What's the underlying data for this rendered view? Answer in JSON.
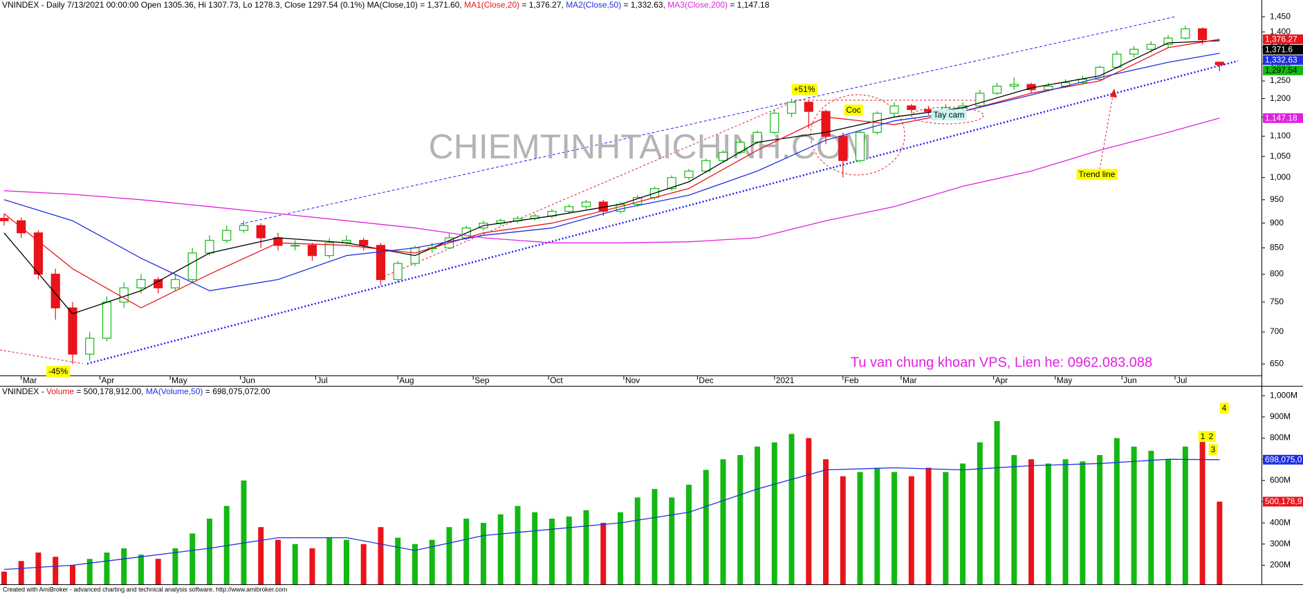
{
  "chart_data": [
    {
      "type": "candlestick",
      "header": [
        {
          "text": "VNINDEX - Daily 7/13/2021 00:00:00 Open 1305.36, Hi 1307.73, Lo 1278.3, Close 1297.54 (0.1%) MA(Close,10) = 1,371.60, ",
          "color": "#000000"
        },
        {
          "text": "MA1(Close,20)",
          "color": "#e8141a"
        },
        {
          "text": " = 1,376.27, ",
          "color": "#000000"
        },
        {
          "text": "MA2(Close,50)",
          "color": "#1f2fe0"
        },
        {
          "text": " = 1,332.63, ",
          "color": "#000000"
        },
        {
          "text": "MA3(Close,200)",
          "color": "#e020e0"
        },
        {
          "text": " = 1,147.18",
          "color": "#000000"
        }
      ],
      "up_color": "#14b814",
      "down_color": "#e8141a",
      "log_scale": true,
      "xlim": [
        -0.24,
        73.45
      ],
      "ylim": [
        633,
        1507
      ],
      "yticks": [
        650,
        700,
        750,
        800,
        850,
        900,
        950,
        {
          "value": 1000,
          "label": "1,000"
        },
        {
          "value": 1050,
          "label": "1,050"
        },
        {
          "value": 1100,
          "label": "1,100"
        },
        {
          "value": 1150,
          "label": "1,150"
        },
        {
          "value": 1200,
          "label": "1,200"
        },
        {
          "value": 1250,
          "label": "1,250"
        },
        {
          "value": 1300,
          "label": "1,300"
        },
        {
          "value": 1350,
          "label": "1,350"
        },
        {
          "value": 1400,
          "label": "1,400"
        },
        {
          "value": 1450,
          "label": "1,450"
        }
      ],
      "xticks": [
        {
          "value": 1,
          "label": "Mar"
        },
        {
          "value": 5.6,
          "label": "Apr"
        },
        {
          "value": 9.7,
          "label": "May"
        },
        {
          "value": 13.8,
          "label": "Jun"
        },
        {
          "value": 18.2,
          "label": "Jul"
        },
        {
          "value": 23,
          "label": "Aug"
        },
        {
          "value": 27.4,
          "label": "Sep"
        },
        {
          "value": 31.8,
          "label": "Oct"
        },
        {
          "value": 36.2,
          "label": "Nov"
        },
        {
          "value": 40.5,
          "label": "Dec"
        },
        {
          "value": 45,
          "label": "2021"
        },
        {
          "value": 49,
          "label": "Feb"
        },
        {
          "value": 52.4,
          "label": "Mar"
        },
        {
          "value": 57.8,
          "label": "Apr"
        },
        {
          "value": 61.4,
          "label": "May"
        },
        {
          "value": 65.3,
          "label": "Jun"
        },
        {
          "value": 68.4,
          "label": "Jul"
        }
      ],
      "ohlc": [
        [
          910,
          920,
          895,
          905
        ],
        [
          905,
          912,
          870,
          880
        ],
        [
          880,
          885,
          790,
          800
        ],
        [
          800,
          810,
          720,
          740
        ],
        [
          740,
          750,
          650,
          665
        ],
        [
          665,
          700,
          655,
          690
        ],
        [
          690,
          760,
          685,
          750
        ],
        [
          750,
          785,
          740,
          775
        ],
        [
          775,
          800,
          765,
          790
        ],
        [
          790,
          795,
          765,
          775
        ],
        [
          775,
          800,
          770,
          790
        ],
        [
          790,
          850,
          785,
          840
        ],
        [
          840,
          875,
          835,
          865
        ],
        [
          865,
          895,
          860,
          885
        ],
        [
          885,
          905,
          880,
          895
        ],
        [
          895,
          900,
          850,
          870
        ],
        [
          870,
          880,
          845,
          855
        ],
        [
          855,
          865,
          845,
          855
        ],
        [
          855,
          860,
          825,
          835
        ],
        [
          835,
          870,
          830,
          860
        ],
        [
          860,
          875,
          855,
          865
        ],
        [
          865,
          870,
          845,
          855
        ],
        [
          855,
          860,
          780,
          790
        ],
        [
          790,
          825,
          785,
          820
        ],
        [
          820,
          855,
          815,
          850
        ],
        [
          850,
          860,
          840,
          850
        ],
        [
          850,
          880,
          848,
          870
        ],
        [
          870,
          895,
          865,
          890
        ],
        [
          890,
          905,
          885,
          900
        ],
        [
          900,
          910,
          895,
          905
        ],
        [
          905,
          915,
          900,
          910
        ],
        [
          910,
          920,
          905,
          915
        ],
        [
          915,
          930,
          910,
          925
        ],
        [
          925,
          940,
          920,
          935
        ],
        [
          935,
          950,
          930,
          945
        ],
        [
          945,
          950,
          915,
          925
        ],
        [
          925,
          945,
          920,
          940
        ],
        [
          940,
          960,
          935,
          955
        ],
        [
          955,
          980,
          950,
          975
        ],
        [
          975,
          1005,
          970,
          1000
        ],
        [
          1000,
          1020,
          995,
          1015
        ],
        [
          1015,
          1045,
          1010,
          1040
        ],
        [
          1040,
          1065,
          1035,
          1060
        ],
        [
          1060,
          1090,
          1055,
          1085
        ],
        [
          1085,
          1115,
          1080,
          1110
        ],
        [
          1110,
          1170,
          1105,
          1160
        ],
        [
          1160,
          1200,
          1150,
          1190
        ],
        [
          1190,
          1195,
          1120,
          1165
        ],
        [
          1165,
          1170,
          1080,
          1100
        ],
        [
          1100,
          1110,
          1000,
          1040
        ],
        [
          1040,
          1115,
          1035,
          1110
        ],
        [
          1110,
          1165,
          1105,
          1160
        ],
        [
          1160,
          1190,
          1150,
          1180
        ],
        [
          1180,
          1185,
          1160,
          1170
        ],
        [
          1170,
          1180,
          1155,
          1165
        ],
        [
          1165,
          1185,
          1160,
          1175
        ],
        [
          1175,
          1190,
          1170,
          1180
        ],
        [
          1180,
          1225,
          1175,
          1215
        ],
        [
          1215,
          1245,
          1210,
          1235
        ],
        [
          1235,
          1260,
          1225,
          1240
        ],
        [
          1240,
          1245,
          1215,
          1225
        ],
        [
          1225,
          1245,
          1220,
          1235
        ],
        [
          1235,
          1255,
          1230,
          1245
        ],
        [
          1245,
          1265,
          1240,
          1255
        ],
        [
          1255,
          1295,
          1250,
          1290
        ],
        [
          1290,
          1340,
          1285,
          1330
        ],
        [
          1330,
          1355,
          1320,
          1345
        ],
        [
          1345,
          1370,
          1335,
          1360
        ],
        [
          1360,
          1390,
          1350,
          1380
        ],
        [
          1380,
          1420,
          1375,
          1410
        ],
        [
          1410,
          1415,
          1360,
          1375
        ],
        [
          1305.36,
          1307.73,
          1278.3,
          1297.54
        ]
      ],
      "close_label": "1,297.54",
      "ma_x": [
        0,
        4,
        8,
        12,
        16,
        20,
        24,
        28,
        32,
        36,
        40,
        44,
        48,
        52,
        56,
        60,
        64,
        68,
        71
      ],
      "series": [
        {
          "name": "MA(Close,10)",
          "color": "#000000",
          "last_label": "1,371.6",
          "values": [
            880,
            730,
            770,
            840,
            870,
            860,
            835,
            895,
            915,
            940,
            990,
            1085,
            1110,
            1150,
            1175,
            1230,
            1265,
            1365,
            1371.6
          ]
        },
        {
          "name": "MA1(Close,20)",
          "color": "#e8141a",
          "last_label": "1,376.27",
          "values": [
            920,
            810,
            740,
            800,
            860,
            855,
            840,
            880,
            900,
            935,
            975,
            1065,
            1150,
            1130,
            1165,
            1215,
            1250,
            1350,
            1376.27
          ]
        },
        {
          "name": "MA2(Close,50)",
          "color": "#1f2fe0",
          "last_label": "1,332.63",
          "values": [
            950,
            905,
            830,
            770,
            790,
            835,
            850,
            875,
            890,
            930,
            960,
            1015,
            1090,
            1140,
            1165,
            1210,
            1260,
            1305,
            1332.63
          ]
        },
        {
          "name": "MA3(Close,200)",
          "color": "#e020e0",
          "last_label": "1,147.18",
          "values": [
            970,
            962,
            950,
            935,
            920,
            905,
            890,
            870,
            860,
            860,
            862,
            870,
            905,
            935,
            980,
            1015,
            1065,
            1110,
            1147.18
          ]
        }
      ],
      "annotations": [
        {
          "text": "+51%",
          "bg": "#ffff00"
        },
        {
          "text": "-45%",
          "bg": "#ffff00"
        },
        {
          "text": "Coc",
          "bg": "#ffff00"
        },
        {
          "text": "Tay cam",
          "bg": "#c8f4f4"
        },
        {
          "text": "Trend line",
          "bg": "#ffff00"
        }
      ],
      "watermark": "CHIEMTINHTAICHINH.COM",
      "note": "Tu van chung khoan VPS, Lien he: 0962.083.088"
    },
    {
      "type": "volume",
      "header": [
        {
          "text": "VNINDEX - ",
          "color": "#000000"
        },
        {
          "text": "Volume",
          "color": "#e8141a"
        },
        {
          "text": " = 500,178,912.00, ",
          "color": "#000000"
        },
        {
          "text": "MA(Volume,50)",
          "color": "#1f2fe0"
        },
        {
          "text": " = 698,075,072.00",
          "color": "#000000"
        }
      ],
      "ylim": [
        110,
        1040
      ],
      "yticks": [
        {
          "value": 200,
          "label": "200M"
        },
        {
          "value": 300,
          "label": "300M"
        },
        {
          "value": 400,
          "label": "400M"
        },
        {
          "value": 500,
          "label": "500M"
        },
        {
          "value": 600,
          "label": "600M"
        },
        {
          "value": 700,
          "label": "700M"
        },
        {
          "value": 800,
          "label": "800M"
        },
        {
          "value": 900,
          "label": "900M"
        },
        {
          "value": 1000,
          "label": "1,000M"
        }
      ],
      "values": [
        170,
        220,
        260,
        240,
        200,
        230,
        260,
        280,
        250,
        230,
        280,
        350,
        420,
        480,
        600,
        380,
        320,
        300,
        280,
        330,
        320,
        300,
        380,
        330,
        300,
        320,
        380,
        420,
        400,
        440,
        480,
        450,
        420,
        430,
        460,
        400,
        450,
        520,
        560,
        520,
        580,
        650,
        700,
        720,
        760,
        780,
        820,
        800,
        700,
        620,
        640,
        660,
        640,
        620,
        660,
        640,
        680,
        780,
        880,
        720,
        700,
        680,
        700,
        690,
        720,
        800,
        760,
        740,
        700,
        760,
        800,
        500.178912
      ],
      "value_label": "500,178,9",
      "ma_x": [
        0,
        4,
        8,
        12,
        16,
        20,
        24,
        28,
        32,
        36,
        40,
        44,
        48,
        52,
        56,
        60,
        64,
        68,
        71
      ],
      "series": [
        {
          "name": "MA(Volume,50)",
          "color": "#1f2fe0",
          "last_label": "698,075,0",
          "values": [
            180,
            200,
            240,
            280,
            330,
            330,
            270,
            340,
            370,
            400,
            450,
            560,
            650,
            660,
            650,
            670,
            680,
            700,
            698.075072
          ]
        }
      ],
      "annotations": [
        {
          "text": "1",
          "bg": "#ffff00"
        },
        {
          "text": "2",
          "bg": "#ffff00"
        },
        {
          "text": "3",
          "bg": "#ffff00"
        },
        {
          "text": "4",
          "bg": "#ffff00"
        }
      ]
    }
  ],
  "footer": "Created with AmiBroker - advanced charting and technical analysis software. http://www.amibroker.com"
}
